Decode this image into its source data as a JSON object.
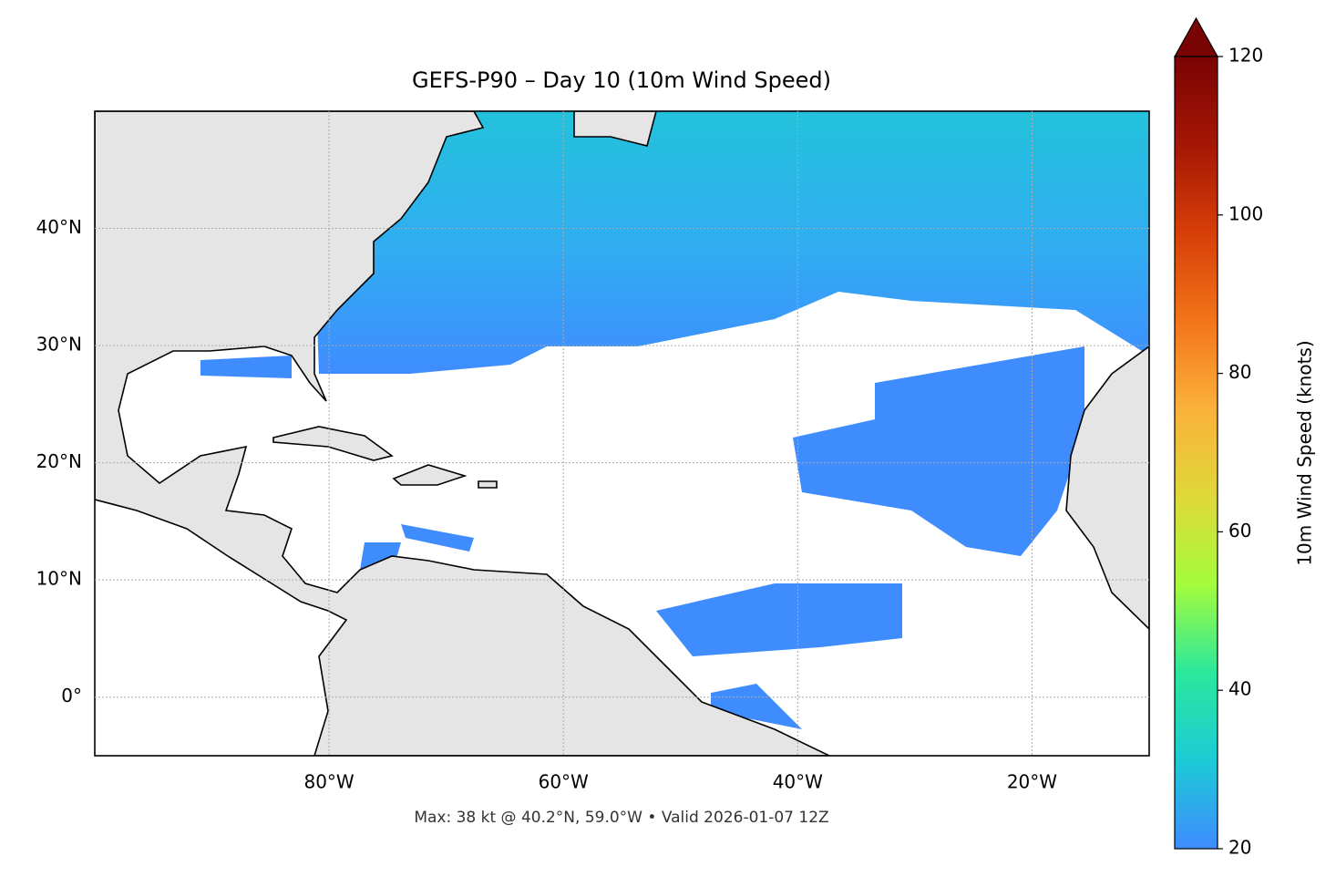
{
  "chart_data": {
    "type": "map",
    "title": "GEFS-P90 – Day 10 (10m Wind Speed)",
    "footer": "Max: 38 kt @ 40.2°N, 59.0°W • Valid 2026-01-07 12Z",
    "xlim": [
      -100,
      -10
    ],
    "ylim": [
      -5,
      50
    ],
    "xticks": [
      {
        "value": -80,
        "label": "80°W"
      },
      {
        "value": -60,
        "label": "60°W"
      },
      {
        "value": -40,
        "label": "40°W"
      },
      {
        "value": -20,
        "label": "20°W"
      }
    ],
    "yticks": [
      {
        "value": 0,
        "label": "0°"
      },
      {
        "value": 10,
        "label": "10°N"
      },
      {
        "value": 20,
        "label": "20°N"
      },
      {
        "value": 30,
        "label": "30°N"
      },
      {
        "value": 40,
        "label": "40°N"
      }
    ],
    "grid": true,
    "colorbar": {
      "label": "10m Wind Speed (knots)",
      "lim": [
        20,
        120
      ],
      "ticks": [
        20,
        40,
        60,
        80,
        100,
        120
      ],
      "colors": [
        "#3f8cff",
        "#1ccbd6",
        "#2ae89c",
        "#a4fc3c",
        "#dfd83a",
        "#fbb13a",
        "#f3741a",
        "#d63f08",
        "#a51605",
        "#7a0403"
      ]
    }
  }
}
